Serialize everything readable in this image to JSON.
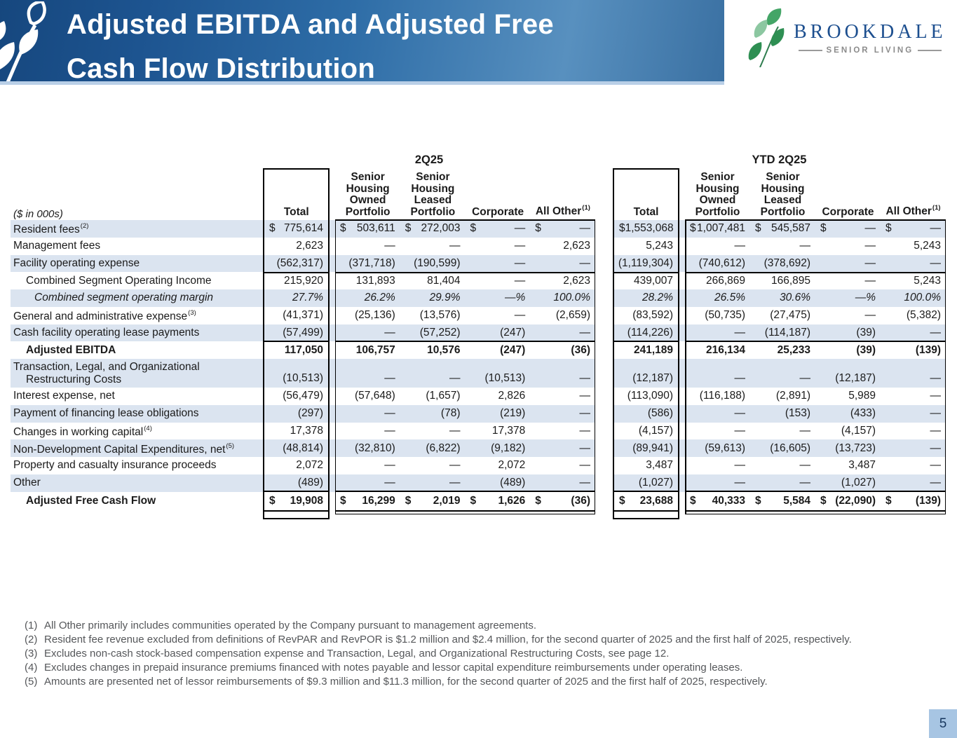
{
  "header": {
    "title_line1": "Adjusted EBITDA and Adjusted Free",
    "title_line2": "Cash Flow Distribution"
  },
  "logo": {
    "brand": "BROOKDALE",
    "tagline": "SENIOR LIVING"
  },
  "colors": {
    "banner_dark": "#16477e",
    "banner_light": "#5890bf",
    "banner_underline": "#b9cfe7",
    "row_band": "#dbe4f0",
    "logo_brand": "#1d4f8f",
    "logo_leaf_green": "#2e8f53",
    "page_box": "#a7c5e3",
    "page_text": "#17375e",
    "footnote_gray": "#55575a"
  },
  "table": {
    "units_label": "($ in 000s)",
    "periods": [
      "2Q25",
      "YTD 2Q25"
    ],
    "columns": [
      {
        "label": "Total"
      },
      {
        "lines": [
          "Senior",
          "Housing",
          "Owned",
          "Portfolio"
        ]
      },
      {
        "lines": [
          "Senior",
          "Housing",
          "Leased",
          "Portfolio"
        ]
      },
      {
        "label": "Corporate"
      },
      {
        "label": "All Other",
        "sup": "(1)"
      }
    ],
    "rows": [
      {
        "label": "Resident fees",
        "sup": "(2)",
        "dollar": true,
        "q": [
          "775,614",
          "503,611",
          "272,003",
          "—",
          "—"
        ],
        "ytd": [
          "1,553,068",
          "1,007,481",
          "545,587",
          "—",
          "—"
        ]
      },
      {
        "label": "Management fees",
        "q": [
          "2,623",
          "—",
          "—",
          "—",
          "2,623"
        ],
        "ytd": [
          "5,243",
          "—",
          "—",
          "—",
          "5,243"
        ]
      },
      {
        "label": "Facility operating expense",
        "q": [
          "(562,317)",
          "(371,718)",
          "(190,599)",
          "—",
          "—"
        ],
        "ytd": [
          "(1,119,304)",
          "(740,612)",
          "(378,692)",
          "—",
          "—"
        ]
      },
      {
        "label": "Combined Segment Operating Income",
        "indent": 1,
        "q": [
          "215,920",
          "131,893",
          "81,404",
          "—",
          "2,623"
        ],
        "ytd": [
          "439,007",
          "266,869",
          "166,895",
          "—",
          "5,243"
        ]
      },
      {
        "label": "Combined segment operating margin",
        "indent": 2,
        "italic": true,
        "q": [
          "27.7%",
          "26.2%",
          "29.9%",
          "—%",
          "100.0%"
        ],
        "ytd": [
          "28.2%",
          "26.5%",
          "30.6%",
          "—%",
          "100.0%"
        ]
      },
      {
        "label": "General and administrative expense",
        "sup": "(3)",
        "q": [
          "(41,371)",
          "(25,136)",
          "(13,576)",
          "—",
          "(2,659)"
        ],
        "ytd": [
          "(83,592)",
          "(50,735)",
          "(27,475)",
          "—",
          "(5,382)"
        ]
      },
      {
        "label": "Cash facility operating lease payments",
        "q": [
          "(57,499)",
          "—",
          "(57,252)",
          "(247)",
          "—"
        ],
        "ytd": [
          "(114,226)",
          "—",
          "(114,187)",
          "(39)",
          "—"
        ]
      },
      {
        "label": "Adjusted EBITDA",
        "indent": 1,
        "bold": true,
        "q": [
          "117,050",
          "106,757",
          "10,576",
          "(247)",
          "(36)"
        ],
        "ytd": [
          "241,189",
          "216,134",
          "25,233",
          "(39)",
          "(139)"
        ]
      },
      {
        "label": "Transaction, Legal, and Organizational",
        "label2": "Restructuring Costs",
        "tall": true,
        "q": [
          "(10,513)",
          "—",
          "—",
          "(10,513)",
          "—"
        ],
        "ytd": [
          "(12,187)",
          "—",
          "—",
          "(12,187)",
          "—"
        ]
      },
      {
        "label": "Interest expense, net",
        "q": [
          "(56,479)",
          "(57,648)",
          "(1,657)",
          "2,826",
          "—"
        ],
        "ytd": [
          "(113,090)",
          "(116,188)",
          "(2,891)",
          "5,989",
          "—"
        ]
      },
      {
        "label": "Payment of financing lease obligations",
        "q": [
          "(297)",
          "—",
          "(78)",
          "(219)",
          "—"
        ],
        "ytd": [
          "(586)",
          "—",
          "(153)",
          "(433)",
          "—"
        ]
      },
      {
        "label": "Changes in working capital",
        "sup": "(4)",
        "q": [
          "17,378",
          "—",
          "—",
          "17,378",
          "—"
        ],
        "ytd": [
          "(4,157)",
          "—",
          "—",
          "(4,157)",
          "—"
        ]
      },
      {
        "label": "Non-Development Capital Expenditures, net",
        "sup": "(5)",
        "q": [
          "(48,814)",
          "(32,810)",
          "(6,822)",
          "(9,182)",
          "—"
        ],
        "ytd": [
          "(89,941)",
          "(59,613)",
          "(16,605)",
          "(13,723)",
          "—"
        ]
      },
      {
        "label": "Property and casualty insurance proceeds",
        "q": [
          "2,072",
          "—",
          "—",
          "2,072",
          "—"
        ],
        "ytd": [
          "3,487",
          "—",
          "—",
          "3,487",
          "—"
        ]
      },
      {
        "label": "Other",
        "q": [
          "(489)",
          "—",
          "—",
          "(489)",
          "—"
        ],
        "ytd": [
          "(1,027)",
          "—",
          "—",
          "(1,027)",
          "—"
        ]
      },
      {
        "label": "Adjusted Free Cash Flow",
        "indent": 1,
        "bold": true,
        "dollar": true,
        "last": true,
        "q": [
          "19,908",
          "16,299",
          "2,019",
          "1,626",
          "(36)"
        ],
        "ytd": [
          "23,688",
          "40,333",
          "5,584",
          "(22,090)",
          "(139)"
        ]
      }
    ]
  },
  "footnotes": [
    {
      "num": "(1)",
      "text": "All Other primarily includes communities operated by the Company pursuant to management agreements."
    },
    {
      "num": "(2)",
      "text": "Resident fee revenue excluded from definitions of RevPAR and RevPOR is $1.2 million and $2.4 million, for the second quarter of 2025 and the first half of 2025, respectively."
    },
    {
      "num": "(3)",
      "text": "Excludes non-cash stock-based compensation expense and Transaction, Legal, and Organizational Restructuring Costs, see page 12."
    },
    {
      "num": "(4)",
      "text": "Excludes changes in prepaid insurance premiums financed with notes payable and lessor capital expenditure reimbursements under operating leases."
    },
    {
      "num": "(5)",
      "text": "Amounts are presented net of lessor reimbursements of $9.3 million and $11.3 million, for the second quarter of 2025 and the first half of 2025, respectively."
    }
  ],
  "footer": {
    "page_number": "5"
  }
}
